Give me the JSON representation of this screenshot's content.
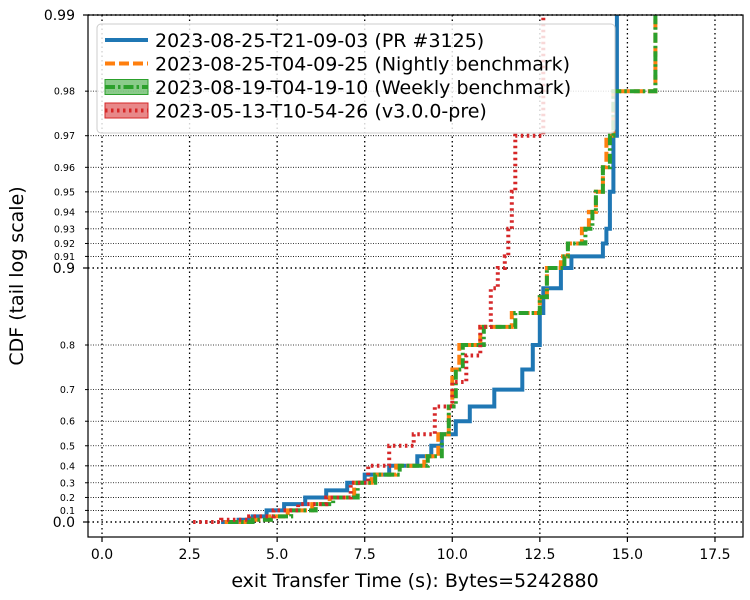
{
  "chart_data": {
    "type": "line",
    "title": "",
    "xlabel": "exit Transfer Time (s): Bytes=5242880",
    "ylabel": "CDF (tail log scale)",
    "xlim": [
      -0.4,
      18.3
    ],
    "x_ticks": [
      {
        "value": 0.0,
        "label": "0.0"
      },
      {
        "value": 2.5,
        "label": "2.5"
      },
      {
        "value": 5.0,
        "label": "5.0"
      },
      {
        "value": 7.5,
        "label": "7.5"
      },
      {
        "value": 10.0,
        "label": "10.0"
      },
      {
        "value": 12.5,
        "label": "12.5"
      },
      {
        "value": 15.0,
        "label": "15.0"
      },
      {
        "value": 17.5,
        "label": "17.5"
      }
    ],
    "y_scale": "tail-log (major ticks at 0.0, 0.9, 0.99)",
    "y_major_ticks": [
      {
        "value": 0.0,
        "label": "0.0"
      },
      {
        "value": 0.9,
        "label": "0.9"
      },
      {
        "value": 0.99,
        "label": "0.99"
      }
    ],
    "y_minor_ticks": [
      {
        "value": 0.1,
        "label": "0.1"
      },
      {
        "value": 0.2,
        "label": "0.2"
      },
      {
        "value": 0.3,
        "label": "0.3"
      },
      {
        "value": 0.4,
        "label": "0.4"
      },
      {
        "value": 0.5,
        "label": "0.5"
      },
      {
        "value": 0.6,
        "label": "0.6"
      },
      {
        "value": 0.7,
        "label": "0.7"
      },
      {
        "value": 0.8,
        "label": "0.8"
      },
      {
        "value": 0.91,
        "label": "0.91"
      },
      {
        "value": 0.92,
        "label": "0.92"
      },
      {
        "value": 0.93,
        "label": "0.93"
      },
      {
        "value": 0.94,
        "label": "0.94"
      },
      {
        "value": 0.95,
        "label": "0.95"
      },
      {
        "value": 0.96,
        "label": "0.96"
      },
      {
        "value": 0.97,
        "label": "0.97"
      },
      {
        "value": 0.98,
        "label": "0.98"
      }
    ],
    "grid": true,
    "legend_position": "top-left",
    "series": [
      {
        "name": "2023-08-25-T21-09-03 (PR #3125)",
        "color": "#1f77b4",
        "style": "solid",
        "points": [
          [
            3.4,
            0.0
          ],
          [
            3.9,
            0.02
          ],
          [
            4.3,
            0.05
          ],
          [
            4.7,
            0.1
          ],
          [
            5.2,
            0.15
          ],
          [
            5.8,
            0.2
          ],
          [
            6.4,
            0.25
          ],
          [
            7.0,
            0.3
          ],
          [
            7.5,
            0.35
          ],
          [
            8.2,
            0.4
          ],
          [
            9.0,
            0.45
          ],
          [
            9.4,
            0.5
          ],
          [
            9.7,
            0.55
          ],
          [
            10.1,
            0.6
          ],
          [
            10.5,
            0.65
          ],
          [
            11.2,
            0.7
          ],
          [
            12.0,
            0.75
          ],
          [
            12.3,
            0.8
          ],
          [
            12.5,
            0.85
          ],
          [
            12.6,
            0.88
          ],
          [
            13.1,
            0.9
          ],
          [
            13.4,
            0.91
          ],
          [
            14.3,
            0.92
          ],
          [
            14.4,
            0.93
          ],
          [
            14.5,
            0.95
          ],
          [
            14.6,
            0.97
          ],
          [
            14.7,
            0.99
          ]
        ]
      },
      {
        "name": "2023-08-25-T04-09-25 (Nightly benchmark)",
        "color": "#ff7f0e",
        "style": "dashed",
        "points": [
          [
            3.5,
            0.0
          ],
          [
            4.2,
            0.02
          ],
          [
            4.8,
            0.05
          ],
          [
            5.3,
            0.1
          ],
          [
            6.0,
            0.15
          ],
          [
            6.5,
            0.2
          ],
          [
            7.2,
            0.3
          ],
          [
            7.7,
            0.35
          ],
          [
            8.4,
            0.4
          ],
          [
            9.2,
            0.45
          ],
          [
            9.6,
            0.55
          ],
          [
            9.9,
            0.65
          ],
          [
            10.0,
            0.75
          ],
          [
            10.2,
            0.8
          ],
          [
            10.8,
            0.83
          ],
          [
            11.7,
            0.85
          ],
          [
            12.5,
            0.87
          ],
          [
            12.7,
            0.9
          ],
          [
            13.1,
            0.91
          ],
          [
            13.3,
            0.92
          ],
          [
            13.7,
            0.93
          ],
          [
            13.9,
            0.94
          ],
          [
            14.1,
            0.95
          ],
          [
            14.3,
            0.96
          ],
          [
            14.4,
            0.97
          ],
          [
            14.6,
            0.98
          ],
          [
            15.8,
            0.99
          ]
        ]
      },
      {
        "name": "2023-08-19-T04-19-10 (Weekly benchmark)",
        "color": "#2ca02c",
        "style": "dashdot",
        "points": [
          [
            3.6,
            0.0
          ],
          [
            4.3,
            0.02
          ],
          [
            4.9,
            0.05
          ],
          [
            5.4,
            0.1
          ],
          [
            6.1,
            0.15
          ],
          [
            6.6,
            0.2
          ],
          [
            7.3,
            0.3
          ],
          [
            7.8,
            0.35
          ],
          [
            8.5,
            0.4
          ],
          [
            9.3,
            0.45
          ],
          [
            9.7,
            0.55
          ],
          [
            9.9,
            0.65
          ],
          [
            10.1,
            0.75
          ],
          [
            10.3,
            0.8
          ],
          [
            10.9,
            0.83
          ],
          [
            11.8,
            0.85
          ],
          [
            12.5,
            0.87
          ],
          [
            12.7,
            0.9
          ],
          [
            13.2,
            0.91
          ],
          [
            13.3,
            0.92
          ],
          [
            13.8,
            0.93
          ],
          [
            14.0,
            0.94
          ],
          [
            14.1,
            0.95
          ],
          [
            14.3,
            0.96
          ],
          [
            14.5,
            0.97
          ],
          [
            14.6,
            0.98
          ],
          [
            15.8,
            0.99
          ]
        ]
      },
      {
        "name": "2023-05-13-T10-54-26 (v3.0.0-pre)",
        "color": "#d62728",
        "style": "dotted",
        "points": [
          [
            2.6,
            0.0
          ],
          [
            3.4,
            0.02
          ],
          [
            4.2,
            0.05
          ],
          [
            4.9,
            0.1
          ],
          [
            5.6,
            0.15
          ],
          [
            6.4,
            0.2
          ],
          [
            7.1,
            0.3
          ],
          [
            7.6,
            0.4
          ],
          [
            8.2,
            0.5
          ],
          [
            8.9,
            0.55
          ],
          [
            9.5,
            0.65
          ],
          [
            10.0,
            0.72
          ],
          [
            10.4,
            0.78
          ],
          [
            10.8,
            0.83
          ],
          [
            11.1,
            0.88
          ],
          [
            11.3,
            0.9
          ],
          [
            11.5,
            0.91
          ],
          [
            11.6,
            0.93
          ],
          [
            11.7,
            0.95
          ],
          [
            11.8,
            0.97
          ],
          [
            12.6,
            0.99
          ]
        ]
      }
    ]
  }
}
